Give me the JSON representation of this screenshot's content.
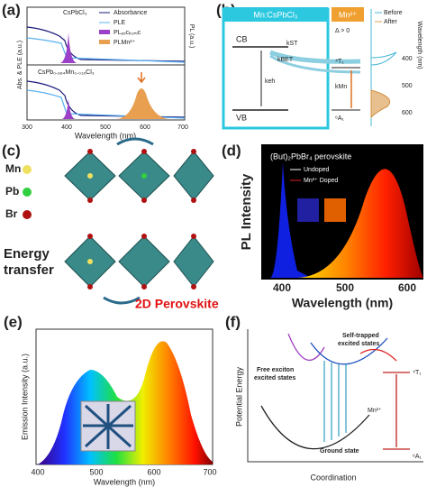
{
  "panels": {
    "a": {
      "label": "(a)",
      "sample_top": "CsPbCl₃",
      "sample_bottom": "CsPb₀.₉₈₄Mn₀.₀₁₆Cl₃",
      "legend": [
        "Absorbance",
        "PLE",
        "PLₑₓcᵢₜₒₙᵢc",
        "PLMn²⁺"
      ],
      "y_label": "Abs. & PLE (a.u.)",
      "y2_label": "PL (a.u.)",
      "x_label": "Wavelength (nm)",
      "x_ticks": [
        300,
        400,
        500,
        600,
        700
      ]
    },
    "b": {
      "label": "(b)",
      "host": "Mn:CsPbCl₃",
      "dopant": "Mn²⁺",
      "cb": "CB",
      "vb": "VB",
      "k_st": "kST",
      "k_bet": "kBET",
      "k_eh": "keh",
      "k_mn": "kMn",
      "delta": "Δ > 0",
      "t1": "⁴T₁",
      "a1": "⁶A₁",
      "legend": [
        "Before",
        "After"
      ],
      "y_label": "Wavelength (nm)",
      "y_ticks": [
        400,
        500,
        600
      ]
    },
    "c": {
      "label": "(c)",
      "mn": "Mn",
      "pb": "Pb",
      "br": "Br",
      "energy": "Energy",
      "transfer": "transfer",
      "caption": "2D Perovskite"
    },
    "d": {
      "label": "(d)",
      "title": "(But)₂PbBr₄ perovskite",
      "legend": [
        "Undoped",
        "Mn²⁺ Doped"
      ],
      "y_label": "PL Intensity",
      "x_label": "Wavelength (nm)",
      "x_ticks": [
        400,
        500,
        600
      ]
    },
    "e": {
      "label": "(e)",
      "y_label": "Emission Intensity (a.u.)",
      "x_label": "Wavelength (nm)",
      "x_ticks": [
        400,
        500,
        600,
        700
      ]
    },
    "f": {
      "label": "(f)",
      "self_trapped": "Self-trapped",
      "excited_states": "excited states",
      "free_exciton": "Free exciton",
      "free_excited": "excited states",
      "ground": "Ground state",
      "mn": "Mn²⁺",
      "t1": "⁴T₁",
      "a1": "⁶A₁",
      "y_label": "Potential Energy",
      "x_label": "Coordination"
    }
  }
}
